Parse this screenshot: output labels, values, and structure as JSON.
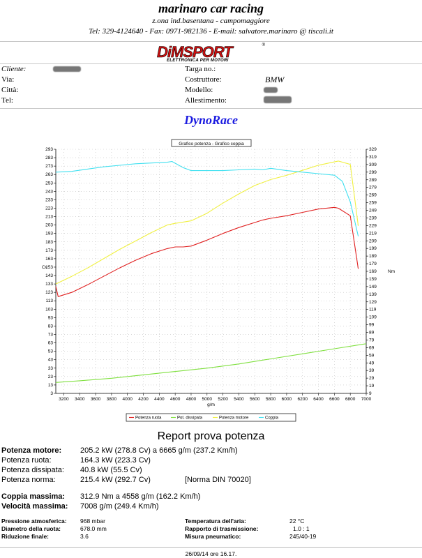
{
  "header": {
    "company": "marinaro car racing",
    "address": "z.ona ind.basentana - campomaggiore",
    "contacts": "Tel: 329-4124640 - Fax: 0971-982136 - E-mail: salvatore.marinaro @  tiscali.it"
  },
  "logo": {
    "main": "DiMSPORT",
    "sub": "ELETTRONICA PER MOTORI",
    "reg": "®"
  },
  "client": {
    "cliente_label": "Cliente:",
    "via_label": "Via:",
    "citta_label": "Città:",
    "tel_label": "Tel:",
    "targa_label": "Targa no.:",
    "costruttore_label": "Costruttore:",
    "costruttore_value": "BMW",
    "modello_label": "Modello:",
    "allestimento_label": "Allestimento:"
  },
  "title": "DynoRace",
  "chart_data": {
    "type": "line",
    "title": "Grafico potenza - Grafico coppia",
    "xlabel": "g/m",
    "ylabel_left": "Cv",
    "ylabel_right": "Nm",
    "xlim": [
      3100,
      7000
    ],
    "x_ticks": [
      3200,
      3400,
      3600,
      3800,
      4000,
      4200,
      4400,
      4600,
      4800,
      5000,
      5200,
      5400,
      5600,
      5800,
      6000,
      6200,
      6400,
      6600,
      6800,
      7000
    ],
    "ylim_left": [
      3,
      293
    ],
    "y_ticks_left": [
      3,
      13,
      23,
      33,
      43,
      53,
      63,
      73,
      83,
      93,
      103,
      113,
      123,
      133,
      143,
      153,
      163,
      173,
      183,
      193,
      203,
      213,
      223,
      233,
      243,
      253,
      263,
      273,
      283,
      293
    ],
    "ylim_right": [
      9,
      329
    ],
    "y_ticks_right": [
      9,
      19,
      29,
      39,
      49,
      59,
      69,
      79,
      89,
      99,
      109,
      119,
      129,
      139,
      149,
      159,
      169,
      179,
      189,
      199,
      209,
      219,
      229,
      239,
      249,
      259,
      269,
      279,
      289,
      299,
      309,
      319,
      329
    ],
    "grid": true,
    "legend_position": "bottom",
    "series": [
      {
        "name": "Potenza ruota",
        "color": "#e02020",
        "axis": "left",
        "x": [
          3100,
          3130,
          3300,
          3500,
          3700,
          3900,
          4100,
          4300,
          4500,
          4600,
          4700,
          4800,
          5000,
          5200,
          5400,
          5600,
          5700,
          5800,
          6000,
          6200,
          6400,
          6600,
          6650,
          6800,
          6900
        ],
        "y": [
          130,
          118,
          123,
          132,
          142,
          152,
          161,
          169,
          175,
          177,
          177,
          178,
          185,
          193,
          200,
          206,
          209,
          211,
          214,
          218,
          222,
          224,
          223,
          214,
          151
        ]
      },
      {
        "name": "Pot. dissipata",
        "color": "#80e040",
        "axis": "left",
        "x": [
          3100,
          3400,
          3800,
          4200,
          4600,
          5000,
          5400,
          5800,
          6200,
          6600,
          7000
        ],
        "y": [
          16,
          18,
          21,
          25,
          29,
          33,
          38,
          44,
          50,
          56,
          62
        ]
      },
      {
        "name": "Potenza motore",
        "color": "#f0f040",
        "axis": "left",
        "x": [
          3100,
          3300,
          3500,
          3700,
          3900,
          4100,
          4300,
          4500,
          4600,
          4800,
          5000,
          5200,
          5400,
          5600,
          5800,
          6000,
          6200,
          6400,
          6600,
          6650,
          6800,
          6900
        ],
        "y": [
          133,
          142,
          152,
          163,
          174,
          184,
          194,
          203,
          205,
          208,
          217,
          229,
          240,
          250,
          257,
          262,
          268,
          274,
          278,
          279,
          275,
          202
        ]
      },
      {
        "name": "Coppia",
        "color": "#40e0f0",
        "axis": "right",
        "x": [
          3100,
          3300,
          3500,
          3700,
          3900,
          4100,
          4300,
          4500,
          4560,
          4700,
          4800,
          5000,
          5200,
          5400,
          5600,
          5700,
          5800,
          6000,
          6200,
          6400,
          6600,
          6700,
          6800,
          6900
        ],
        "y": [
          299,
          300,
          303,
          306,
          308,
          310,
          311,
          312,
          313,
          305,
          301,
          301,
          301,
          302,
          303,
          302,
          304,
          301,
          299,
          297,
          295,
          287,
          260,
          215
        ]
      }
    ]
  },
  "report": {
    "title": "Report prova potenza",
    "rows": [
      {
        "label": "Potenza motore:",
        "value": "205.2 kW (278.8 Cv) a 6665 g/m (237.2 Km/h)",
        "extra": ""
      },
      {
        "label": "Potenza ruota:",
        "value": "164.3 kW (223.3 Cv)",
        "extra": ""
      },
      {
        "label": "Potenza dissipata:",
        "value": "40.8 kW (55.5 Cv)",
        "extra": ""
      },
      {
        "label": "Potenza norma:",
        "value": "215.4 kW (292.7 Cv)",
        "extra": "[Norma DIN 70020]"
      },
      {
        "label": "Coppia massima:",
        "value": "312.9 Nm a 4558 g/m (162.2 Km/h)",
        "extra": ""
      },
      {
        "label": "Velocità massima:",
        "value": "7008 g/m (249.4 Km/h)",
        "extra": ""
      }
    ],
    "conditions": [
      {
        "label": "Pressione atmosferica:",
        "value": "968 mbar",
        "label2": "Temperatura dell'aria:",
        "value2": "22 °C"
      },
      {
        "label": "Diametro della ruota:",
        "value": "678.0 mm",
        "label2": "Rapporto di trasmissione:",
        "value2": "1.0 : 1"
      },
      {
        "label": "Riduzione finale:",
        "value": "3.6",
        "label2": "Misura pneumatico:",
        "value2": "245/40-19"
      }
    ],
    "footer_date": "26/09/14 ore 16.17."
  }
}
